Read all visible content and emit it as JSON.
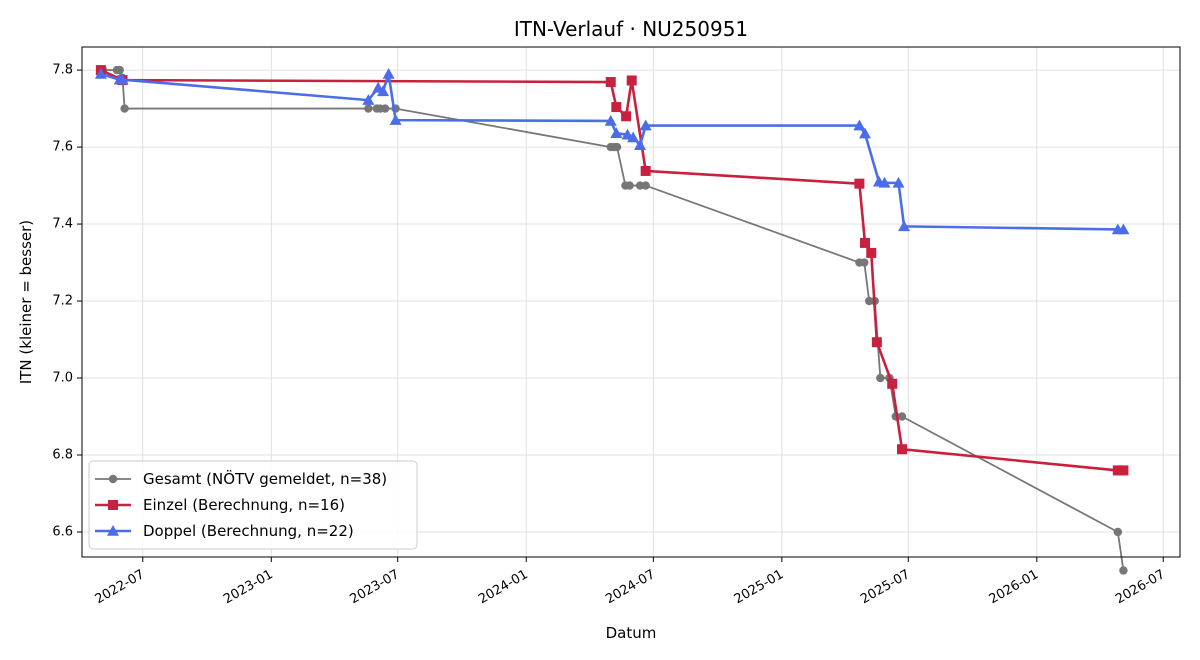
{
  "chart_data": {
    "type": "line",
    "title": "ITN-Verlauf · NU250951",
    "xlabel": "Datum",
    "ylabel": "ITN  (kleiner = besser)",
    "x_ticks": [
      "2022-07",
      "2023-01",
      "2023-07",
      "2024-01",
      "2024-07",
      "2025-01",
      "2025-07",
      "2026-01",
      "2026-07"
    ],
    "y_ticks": [
      "6.6",
      "6.8",
      "7.0",
      "7.2",
      "7.4",
      "7.6",
      "7.8"
    ],
    "xlim": [
      "2022-04-05",
      "2026-07-25"
    ],
    "ylim": [
      6.535,
      7.86
    ],
    "grid": true,
    "legend_position": "lower-left",
    "series": [
      {
        "name": "Gesamt (NÖTV gemeldet, n=38)",
        "color": "#444444",
        "marker": "circle",
        "points": [
          [
            "2022-05-02",
            7.8
          ],
          [
            "2022-05-05",
            7.8
          ],
          [
            "2022-05-25",
            7.8
          ],
          [
            "2022-05-29",
            7.8
          ],
          [
            "2022-06-02",
            7.78
          ],
          [
            "2022-06-05",
            7.7
          ],
          [
            "2023-05-20",
            7.7
          ],
          [
            "2023-06-01",
            7.7
          ],
          [
            "2023-06-06",
            7.7
          ],
          [
            "2023-06-13",
            7.7
          ],
          [
            "2023-06-28",
            7.7
          ],
          [
            "2024-05-01",
            7.6
          ],
          [
            "2024-05-06",
            7.6
          ],
          [
            "2024-05-10",
            7.6
          ],
          [
            "2024-05-22",
            7.5
          ],
          [
            "2024-05-28",
            7.5
          ],
          [
            "2024-06-12",
            7.5
          ],
          [
            "2024-06-20",
            7.5
          ],
          [
            "2025-04-22",
            7.3
          ],
          [
            "2025-04-29",
            7.3
          ],
          [
            "2025-05-06",
            7.2
          ],
          [
            "2025-05-14",
            7.2
          ],
          [
            "2025-05-22",
            7.0
          ],
          [
            "2025-06-04",
            7.0
          ],
          [
            "2025-06-13",
            6.9
          ],
          [
            "2025-06-22",
            6.9
          ],
          [
            "2026-04-27",
            6.6
          ],
          [
            "2026-05-05",
            6.5
          ]
        ]
      },
      {
        "name": "Einzel (Berechnung, n=16)",
        "color": "#c8203f",
        "marker": "square",
        "points": [
          [
            "2022-05-02",
            7.8
          ],
          [
            "2022-06-02",
            7.774
          ],
          [
            "2024-05-01",
            7.769
          ],
          [
            "2024-05-09",
            7.704
          ],
          [
            "2024-05-23",
            7.68
          ],
          [
            "2024-05-31",
            7.773
          ],
          [
            "2024-06-20",
            7.538
          ],
          [
            "2025-04-22",
            7.505
          ],
          [
            "2025-04-30",
            7.351
          ],
          [
            "2025-05-09",
            7.325
          ],
          [
            "2025-05-17",
            7.093
          ],
          [
            "2025-06-08",
            6.985
          ],
          [
            "2025-06-22",
            6.815
          ],
          [
            "2026-04-27",
            6.76
          ],
          [
            "2026-05-05",
            6.76
          ]
        ]
      },
      {
        "name": "Doppel (Berechnung, n=22)",
        "color": "#4b6ee8",
        "marker": "triangle",
        "points": [
          [
            "2022-05-02",
            7.79
          ],
          [
            "2022-05-29",
            7.775
          ],
          [
            "2022-06-02",
            7.775
          ],
          [
            "2023-05-20",
            7.722
          ],
          [
            "2023-06-03",
            7.754
          ],
          [
            "2023-06-10",
            7.745
          ],
          [
            "2023-06-18",
            7.79
          ],
          [
            "2023-06-28",
            7.67
          ],
          [
            "2024-05-01",
            7.668
          ],
          [
            "2024-05-09",
            7.636
          ],
          [
            "2024-05-25",
            7.632
          ],
          [
            "2024-06-02",
            7.625
          ],
          [
            "2024-06-12",
            7.605
          ],
          [
            "2024-06-20",
            7.656
          ],
          [
            "2025-04-22",
            7.656
          ],
          [
            "2025-04-30",
            7.635
          ],
          [
            "2025-05-20",
            7.51
          ],
          [
            "2025-05-28",
            7.507
          ],
          [
            "2025-06-17",
            7.507
          ],
          [
            "2025-06-25",
            7.394
          ],
          [
            "2026-04-27",
            7.386
          ],
          [
            "2026-05-05",
            7.386
          ]
        ]
      }
    ]
  }
}
